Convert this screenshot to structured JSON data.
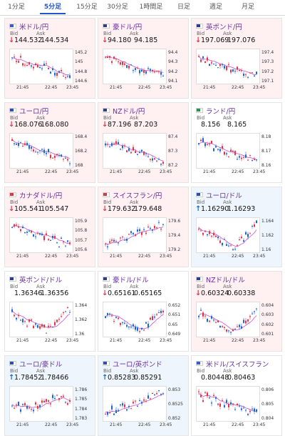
{
  "tabs": [
    {
      "label": "1分足",
      "active": false
    },
    {
      "label": "5分足",
      "active": true
    },
    {
      "label": "15分足",
      "active": false
    },
    {
      "label": "30分足",
      "active": false
    },
    {
      "label": "1時間足",
      "active": false
    },
    {
      "label": "日足",
      "active": false
    },
    {
      "label": "週足",
      "active": false
    },
    {
      "label": "月足",
      "active": false
    }
  ],
  "labels": {
    "bid": "Bid",
    "ask": "Ask"
  },
  "colors": {
    "down": "#e0344a",
    "up": "#1a66d9",
    "pair": "#6a2fa3",
    "ma": "#d050d0"
  },
  "pairs": [
    {
      "name": "米ドル/円",
      "flag": "us-flag",
      "bid": "144.532",
      "ask": "144.534",
      "dir": "down",
      "bg": "down",
      "yticks": [
        "145.2",
        "145",
        "144.8",
        "144.6"
      ],
      "xticks": [
        "21:45",
        "22:45",
        "23:45"
      ],
      "trend": "down",
      "seed": 1
    },
    {
      "name": "豪ドル/円",
      "flag": "au-flag",
      "bid": "94.180",
      "ask": "94.185",
      "dir": "down",
      "bg": "down",
      "yticks": [
        "94.4",
        "94.3",
        "94.2",
        "94.1"
      ],
      "xticks": [
        "21:45",
        "22:45",
        "23:45"
      ],
      "trend": "down",
      "seed": 2
    },
    {
      "name": "英ポンド/円",
      "flag": "gb-flag",
      "bid": "197.069",
      "ask": "197.076",
      "dir": "down",
      "bg": "down",
      "yticks": [
        "197.4",
        "197.3",
        "197.2",
        "197.1"
      ],
      "xticks": [
        "21:45",
        "22:45",
        "23:45"
      ],
      "trend": "down",
      "seed": 3
    },
    {
      "name": "ユーロ/円",
      "flag": "eu-flag",
      "bid": "168.076",
      "ask": "168.080",
      "dir": "down",
      "bg": "down",
      "yticks": [
        "168.4",
        "168.2",
        "168"
      ],
      "xticks": [
        "21:45",
        "22:45",
        "23:45"
      ],
      "trend": "down",
      "seed": 4
    },
    {
      "name": "NZドル/円",
      "flag": "nz-flag",
      "bid": "87.196",
      "ask": "87.203",
      "dir": "down",
      "bg": "down",
      "yticks": [
        "87.4",
        "87.3",
        "87.2"
      ],
      "xticks": [
        "21:45",
        "22:45",
        "23:45"
      ],
      "trend": "down",
      "seed": 5
    },
    {
      "name": "ランド/円",
      "flag": "za-flag",
      "bid": "8.156",
      "ask": "8.165",
      "dir": "none",
      "bg": "flat",
      "yticks": [
        "8.18",
        "8.17",
        "8.16"
      ],
      "xticks": [
        "21:45",
        "22:45",
        "23:45"
      ],
      "trend": "down",
      "seed": 6
    },
    {
      "name": "カナダドル/円",
      "flag": "ca-flag",
      "bid": "105.541",
      "ask": "105.547",
      "dir": "down",
      "bg": "down",
      "yticks": [
        "105.9",
        "105.8",
        "105.7",
        "105.6"
      ],
      "xticks": [
        "21:45",
        "22:45",
        "23:45"
      ],
      "trend": "down",
      "seed": 7
    },
    {
      "name": "スイスフラン/円",
      "flag": "ch-flag",
      "bid": "179.632",
      "ask": "179.648",
      "dir": "down",
      "bg": "down",
      "yticks": [
        "179.6",
        "179.4",
        "179.2"
      ],
      "xticks": [
        "21:45",
        "22:45",
        "23:45"
      ],
      "trend": "up",
      "seed": 8
    },
    {
      "name": "ユーロ/ドル",
      "flag": "eu-flag",
      "bid": "1.16290",
      "ask": "1.16293",
      "dir": "up",
      "bg": "up",
      "yticks": [
        "1.164",
        "1.162",
        "1.16"
      ],
      "xticks": [
        "21:45",
        "22:45",
        "23:45"
      ],
      "trend": "vup",
      "seed": 9
    },
    {
      "name": "英ポンド/ドル",
      "flag": "gb-flag",
      "bid": "1.36346",
      "ask": "1.36356",
      "dir": "none",
      "bg": "flat",
      "yticks": [
        "1.364",
        "1.362",
        "1.36"
      ],
      "xticks": [
        "21:45",
        "22:45",
        "23:45"
      ],
      "trend": "vup",
      "seed": 10
    },
    {
      "name": "豪ドル/ドル",
      "flag": "au-flag",
      "bid": "0.65161",
      "ask": "0.65165",
      "dir": "down",
      "bg": "flat",
      "yticks": [
        "0.652",
        "0.651",
        "0.65",
        "0.649"
      ],
      "xticks": [
        "21:45",
        "22:45",
        "23:45"
      ],
      "trend": "vup",
      "seed": 11
    },
    {
      "name": "NZドル/ドル",
      "flag": "nz-flag",
      "bid": "0.60324",
      "ask": "0.60338",
      "dir": "down",
      "bg": "down",
      "yticks": [
        "0.604",
        "0.603",
        "0.602",
        "0.601"
      ],
      "xticks": [
        "21:45",
        "22:45",
        "23:45"
      ],
      "trend": "vup",
      "seed": 12
    },
    {
      "name": "ユーロ/豪ドル",
      "flag": "eu-flag",
      "bid": "1.78452",
      "ask": "1.78466",
      "dir": "up",
      "bg": "up",
      "yticks": [
        "1.786",
        "1.785",
        "1.784",
        "1.783"
      ],
      "xticks": [
        "21:45",
        "22:45",
        "23:45"
      ],
      "trend": "flat",
      "seed": 13
    },
    {
      "name": "ユーロ/英ポンド",
      "flag": "eu-flag",
      "bid": "0.85283",
      "ask": "0.85291",
      "dir": "up",
      "bg": "up",
      "yticks": [
        "0.853",
        "0.8525",
        "0.852"
      ],
      "xticks": [
        "21:45",
        "22:45",
        "23:45"
      ],
      "trend": "up",
      "seed": 14
    },
    {
      "name": "米ドル/スイスフラン",
      "flag": "us-flag",
      "bid": "0.80448",
      "ask": "0.80463",
      "dir": "none",
      "bg": "flat",
      "yticks": [
        "0.806",
        "0.805",
        "0.804"
      ],
      "xticks": [
        "21:45",
        "22:45",
        "23:45"
      ],
      "trend": "down",
      "seed": 15
    }
  ]
}
